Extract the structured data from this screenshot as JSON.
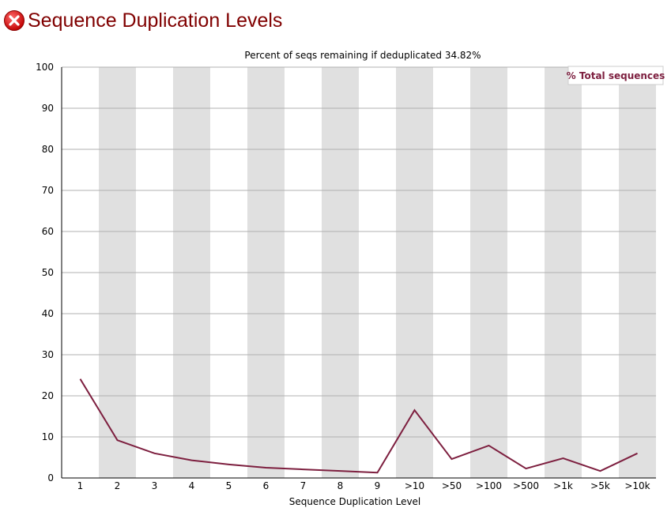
{
  "header": {
    "status_icon": "error-x-icon",
    "title": "Sequence Duplication Levels"
  },
  "colors": {
    "title": "#800000",
    "line": "#7d1f3f",
    "band": "#e0e0e0",
    "grid": "#b0b0b0"
  },
  "chart_data": {
    "type": "line",
    "title": "Percent of seqs remaining if deduplicated 34.82%",
    "xlabel": "Sequence Duplication Level",
    "ylabel": "",
    "ylim": [
      0,
      100
    ],
    "yticks": [
      0,
      10,
      20,
      30,
      40,
      50,
      60,
      70,
      80,
      90,
      100
    ],
    "grid": true,
    "alternating_bands": true,
    "legend_position": "top-right",
    "categories": [
      "1",
      "2",
      "3",
      "4",
      "5",
      "6",
      "7",
      "8",
      "9",
      ">10",
      ">50",
      ">100",
      ">500",
      ">1k",
      ">5k",
      ">10k"
    ],
    "series": [
      {
        "name": "% Total sequences",
        "color": "#7d1f3f",
        "values": [
          24.1,
          9.2,
          6.0,
          4.3,
          3.3,
          2.5,
          2.1,
          1.7,
          1.3,
          16.5,
          4.6,
          7.9,
          2.3,
          4.8,
          1.7,
          6.0
        ]
      }
    ]
  }
}
